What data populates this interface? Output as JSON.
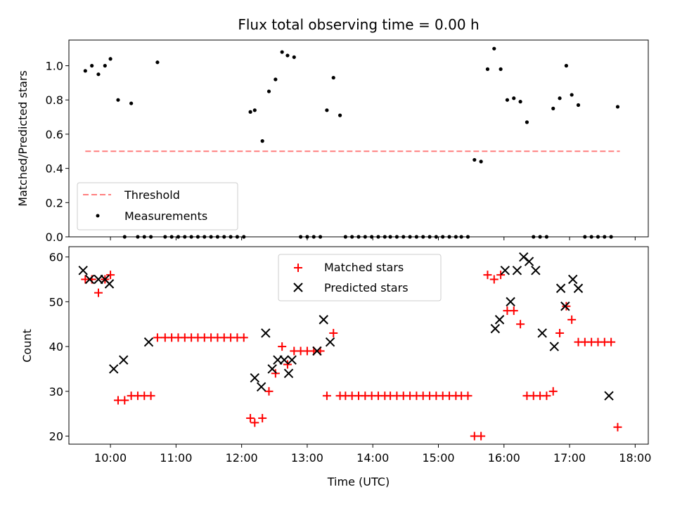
{
  "chart_data": [
    {
      "type": "scatter",
      "title": "Flux total observing time = 0.00 h",
      "xlabel": "",
      "ylabel": "Matched/Predicted stars",
      "xlim": [
        "09:22",
        "18:12"
      ],
      "ylim": [
        0,
        1.15
      ],
      "yticks": [
        "0.0",
        "0.2",
        "0.4",
        "0.6",
        "0.8",
        "1.0"
      ],
      "legend_position": "lower-left",
      "series": [
        {
          "name": "Threshold",
          "kind": "line",
          "color": "#ff7f7f",
          "x": [
            "09:37",
            "17:46"
          ],
          "y": [
            0.5,
            0.5
          ]
        },
        {
          "name": "Measurements",
          "kind": "scatter",
          "color": "#000000",
          "x": [
            "09:37",
            "09:43",
            "09:49",
            "09:55",
            "10:00",
            "10:07",
            "10:13",
            "10:19",
            "10:25",
            "10:31",
            "10:37",
            "10:43",
            "10:50",
            "10:56",
            "11:02",
            "11:08",
            "11:14",
            "11:20",
            "11:26",
            "11:32",
            "11:38",
            "11:44",
            "11:50",
            "11:56",
            "12:02",
            "12:08",
            "12:12",
            "12:19",
            "12:25",
            "12:31",
            "12:37",
            "12:42",
            "12:48",
            "12:54",
            "13:00",
            "13:06",
            "13:12",
            "13:18",
            "13:24",
            "13:30",
            "13:35",
            "13:41",
            "13:47",
            "13:53",
            "13:59",
            "14:05",
            "14:11",
            "14:16",
            "14:22",
            "14:28",
            "14:34",
            "14:40",
            "14:46",
            "14:52",
            "14:58",
            "15:04",
            "15:10",
            "15:16",
            "15:21",
            "15:27",
            "15:33",
            "15:39",
            "15:45",
            "15:51",
            "15:57",
            "16:03",
            "16:09",
            "16:15",
            "16:21",
            "16:27",
            "16:33",
            "16:39",
            "16:45",
            "16:51",
            "16:57",
            "17:02",
            "17:08",
            "17:14",
            "17:20",
            "17:26",
            "17:32",
            "17:38",
            "17:44"
          ],
          "y": [
            0.97,
            1.0,
            0.95,
            1.0,
            1.04,
            0.8,
            0.0,
            0.78,
            0.0,
            0.0,
            0.0,
            1.02,
            0.0,
            0.0,
            0.0,
            0.0,
            0.0,
            0.0,
            0.0,
            0.0,
            0.0,
            0.0,
            0.0,
            0.0,
            0.0,
            0.73,
            0.74,
            0.56,
            0.85,
            0.92,
            1.08,
            1.06,
            1.05,
            0.0,
            0.0,
            0.0,
            0.0,
            0.74,
            0.93,
            0.71,
            0.0,
            0.0,
            0.0,
            0.0,
            0.0,
            0.0,
            0.0,
            0.0,
            0.0,
            0.0,
            0.0,
            0.0,
            0.0,
            0.0,
            0.0,
            0.0,
            0.0,
            0.0,
            0.0,
            0.0,
            0.45,
            0.44,
            0.98,
            1.1,
            0.98,
            0.8,
            0.81,
            0.79,
            0.67,
            0.0,
            0.0,
            0.0,
            0.75,
            0.81,
            1.0,
            0.83,
            0.77,
            0.0,
            0.0,
            0.0,
            0.0,
            0.0,
            0.76
          ]
        }
      ]
    },
    {
      "type": "scatter",
      "title": "",
      "xlabel": "Time (UTC)",
      "ylabel": "Count",
      "xlim": [
        "09:22",
        "18:12"
      ],
      "ylim": [
        18.2,
        62.3
      ],
      "xticks": [
        "10:00",
        "11:00",
        "12:00",
        "13:00",
        "14:00",
        "15:00",
        "16:00",
        "17:00",
        "18:00"
      ],
      "yticks": [
        "20",
        "30",
        "40",
        "50",
        "60"
      ],
      "legend_position": "upper-center",
      "series": [
        {
          "name": "Matched stars",
          "marker": "plus",
          "color": "#ff0000",
          "x": [
            "09:37",
            "09:43",
            "09:49",
            "09:55",
            "10:00",
            "10:07",
            "10:13",
            "10:19",
            "10:25",
            "10:31",
            "10:37",
            "10:43",
            "10:50",
            "10:56",
            "11:02",
            "11:08",
            "11:14",
            "11:20",
            "11:26",
            "11:32",
            "11:38",
            "11:44",
            "11:50",
            "11:56",
            "12:02",
            "12:08",
            "12:12",
            "12:19",
            "12:25",
            "12:31",
            "12:37",
            "12:42",
            "12:48",
            "12:54",
            "13:00",
            "13:06",
            "13:12",
            "13:18",
            "13:24",
            "13:30",
            "13:35",
            "13:41",
            "13:47",
            "13:53",
            "13:59",
            "14:05",
            "14:11",
            "14:16",
            "14:22",
            "14:28",
            "14:34",
            "14:40",
            "14:46",
            "14:52",
            "14:58",
            "15:04",
            "15:10",
            "15:16",
            "15:21",
            "15:27",
            "15:33",
            "15:39",
            "15:45",
            "15:51",
            "15:57",
            "16:03",
            "16:09",
            "16:15",
            "16:21",
            "16:27",
            "16:33",
            "16:39",
            "16:45",
            "16:51",
            "16:57",
            "17:02",
            "17:08",
            "17:14",
            "17:20",
            "17:26",
            "17:32",
            "17:38",
            "17:44"
          ],
          "y": [
            55,
            55,
            52,
            55,
            56,
            28,
            28,
            29,
            29,
            29,
            29,
            42,
            42,
            42,
            42,
            42,
            42,
            42,
            42,
            42,
            42,
            42,
            42,
            42,
            42,
            24,
            23,
            24,
            30,
            34,
            40,
            36,
            39,
            39,
            39,
            39,
            39,
            29,
            43,
            29,
            29,
            29,
            29,
            29,
            29,
            29,
            29,
            29,
            29,
            29,
            29,
            29,
            29,
            29,
            29,
            29,
            29,
            29,
            29,
            29,
            20,
            20,
            56,
            55,
            56,
            48,
            48,
            45,
            29,
            29,
            29,
            29,
            30,
            43,
            49,
            46,
            41,
            41,
            41,
            41,
            41,
            41,
            22
          ]
        },
        {
          "name": "Predicted stars",
          "marker": "x",
          "color": "#000000",
          "x": [
            "09:35",
            "09:41",
            "09:49",
            "09:55",
            "09:59",
            "10:03",
            "10:12",
            "10:35",
            "12:12",
            "12:18",
            "12:22",
            "12:28",
            "12:33",
            "12:39",
            "12:43",
            "12:46",
            "13:09",
            "13:15",
            "13:21",
            "15:52",
            "15:56",
            "16:01",
            "16:06",
            "16:12",
            "16:18",
            "16:23",
            "16:29",
            "16:35",
            "16:46",
            "16:52",
            "16:56",
            "17:03",
            "17:08",
            "17:36"
          ],
          "y": [
            57,
            55,
            55,
            55,
            54,
            35,
            37,
            41,
            33,
            31,
            43,
            35,
            37,
            37,
            34,
            37,
            39,
            46,
            41,
            44,
            46,
            57,
            50,
            57,
            60,
            59,
            57,
            43,
            40,
            53,
            49,
            55,
            53,
            29
          ]
        }
      ]
    }
  ]
}
